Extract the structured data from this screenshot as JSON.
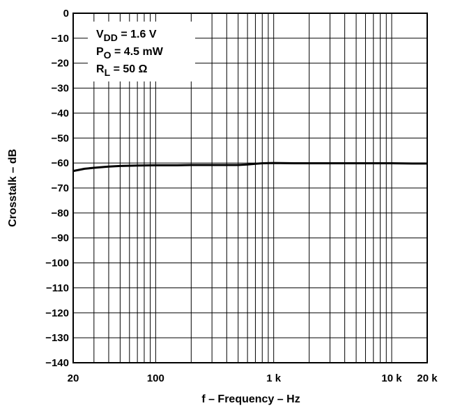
{
  "chart_data": {
    "type": "line",
    "xlabel": "f – Frequency – Hz",
    "ylabel": "Crosstalk – dB",
    "xscale": "log",
    "xlim": [
      20,
      20000
    ],
    "ylim": [
      -140,
      0
    ],
    "grid": true,
    "x_ticks": [
      {
        "value": 20,
        "label": "20"
      },
      {
        "value": 100,
        "label": "100"
      },
      {
        "value": 1000,
        "label": "1 k"
      },
      {
        "value": 10000,
        "label": "10 k"
      },
      {
        "value": 20000,
        "label": "20 k"
      }
    ],
    "y_ticks": [
      {
        "value": 0,
        "label": "0"
      },
      {
        "value": -10,
        "label": "−10"
      },
      {
        "value": -20,
        "label": "−20"
      },
      {
        "value": -30,
        "label": "−30"
      },
      {
        "value": -40,
        "label": "−40"
      },
      {
        "value": -50,
        "label": "−50"
      },
      {
        "value": -60,
        "label": "−60"
      },
      {
        "value": -70,
        "label": "−70"
      },
      {
        "value": -80,
        "label": "−80"
      },
      {
        "value": -90,
        "label": "−90"
      },
      {
        "value": -100,
        "label": "−100"
      },
      {
        "value": -110,
        "label": "−110"
      },
      {
        "value": -120,
        "label": "−120"
      },
      {
        "value": -130,
        "label": "−130"
      },
      {
        "value": -140,
        "label": "−140"
      }
    ],
    "annotations": [
      {
        "main": "V",
        "sub": "DD",
        "rest": " = 1.6 V"
      },
      {
        "main": "P",
        "sub": "O",
        "rest": " = 4.5 mW"
      },
      {
        "main": "R",
        "sub": "L",
        "rest": " = 50 Ω"
      }
    ],
    "series": [
      {
        "color": "#000000",
        "points": [
          [
            20,
            -63.2
          ],
          [
            25,
            -62.3
          ],
          [
            30,
            -61.9
          ],
          [
            40,
            -61.4
          ],
          [
            50,
            -61.2
          ],
          [
            70,
            -61.0
          ],
          [
            100,
            -60.9
          ],
          [
            150,
            -60.9
          ],
          [
            200,
            -60.8
          ],
          [
            300,
            -60.8
          ],
          [
            400,
            -60.8
          ],
          [
            500,
            -60.8
          ],
          [
            600,
            -60.6
          ],
          [
            700,
            -60.3
          ],
          [
            800,
            -60.1
          ],
          [
            1000,
            -60.0
          ],
          [
            1500,
            -60.1
          ],
          [
            2000,
            -60.1
          ],
          [
            3000,
            -60.1
          ],
          [
            5000,
            -60.1
          ],
          [
            7000,
            -60.1
          ],
          [
            10000,
            -60.1
          ],
          [
            15000,
            -60.2
          ],
          [
            20000,
            -60.2
          ]
        ]
      }
    ]
  }
}
